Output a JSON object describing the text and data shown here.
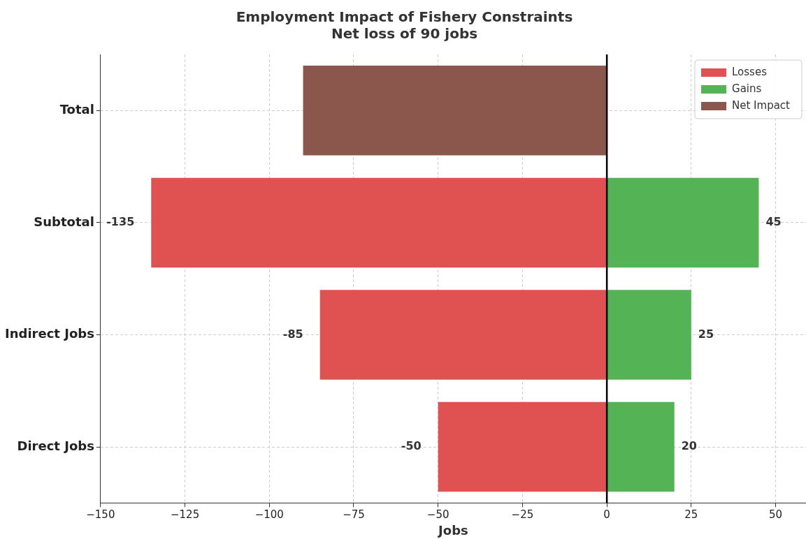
{
  "chart_data": {
    "type": "bar",
    "orientation": "horizontal",
    "stacked": true,
    "title": "Employment Impact of Fishery Constraints",
    "subtitle": "Net loss of 90 jobs",
    "xlabel": "Jobs",
    "categories": [
      "Total",
      "Subtotal",
      "Indirect Jobs",
      "Direct Jobs"
    ],
    "series": [
      {
        "name": "Losses",
        "color": "#e05252",
        "values": [
          null,
          -135,
          -85,
          -50
        ],
        "value_labels": [
          null,
          "-135",
          "-85",
          "-50"
        ]
      },
      {
        "name": "Gains",
        "color": "#54b354",
        "values": [
          null,
          45,
          25,
          20
        ],
        "value_labels": [
          null,
          "45",
          "25",
          "20"
        ]
      },
      {
        "name": "Net Impact",
        "color": "#8b564b",
        "values": [
          -90,
          null,
          null,
          null
        ]
      }
    ],
    "xlim": [
      -150,
      59
    ],
    "xticks": [
      {
        "value": -150,
        "label": "−150"
      },
      {
        "value": -125,
        "label": "−125"
      },
      {
        "value": -100,
        "label": "−100"
      },
      {
        "value": -75,
        "label": "−75"
      },
      {
        "value": -50,
        "label": "−50"
      },
      {
        "value": -25,
        "label": "−25"
      },
      0,
      25,
      50
    ],
    "ref_lines": [
      {
        "axis": "x",
        "value": 0,
        "color": "#000000"
      }
    ],
    "grid": true,
    "legend": "top right"
  }
}
